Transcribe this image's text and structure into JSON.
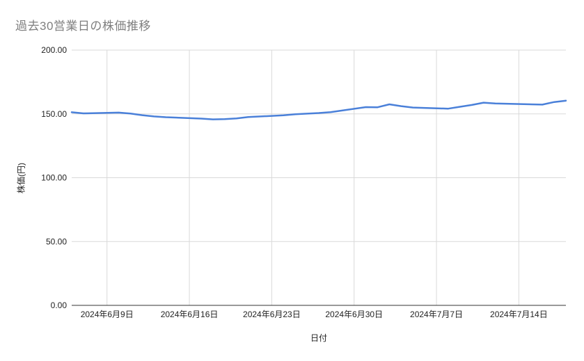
{
  "title": "過去30営業日の株価推移",
  "colors": {
    "line": "#4a80d9",
    "title_text": "#7f7f7f",
    "grid": "#d9d9d9",
    "axis_line": "#333333",
    "tick_text": "#222222",
    "axis_title_text": "#222222",
    "background": "#ffffff"
  },
  "chart_data": {
    "type": "line",
    "title": "過去30営業日の株価推移",
    "xlabel": "日付",
    "ylabel": "株価(円)",
    "grid": true,
    "legend": false,
    "ylim": [
      0,
      200
    ],
    "y_ticks": [
      0,
      50,
      100,
      150,
      200
    ],
    "y_tick_labels": [
      "0.00",
      "50.00",
      "100.00",
      "150.00",
      "200.00"
    ],
    "x_axis_range": [
      "2024-06-06",
      "2024-07-18"
    ],
    "x_ticks": [
      "2024-06-09",
      "2024-06-16",
      "2024-06-23",
      "2024-06-30",
      "2024-07-07",
      "2024-07-14"
    ],
    "x_tick_labels": [
      "2024年6月9日",
      "2024年6月16日",
      "2024年6月23日",
      "2024年6月30日",
      "2024年7月7日",
      "2024年7月14日"
    ],
    "x": [
      "2024-06-06",
      "2024-06-07",
      "2024-06-10",
      "2024-06-11",
      "2024-06-12",
      "2024-06-13",
      "2024-06-14",
      "2024-06-17",
      "2024-06-18",
      "2024-06-19",
      "2024-06-20",
      "2024-06-21",
      "2024-06-24",
      "2024-06-25",
      "2024-06-26",
      "2024-06-27",
      "2024-06-28",
      "2024-07-01",
      "2024-07-02",
      "2024-07-03",
      "2024-07-04",
      "2024-07-05",
      "2024-07-08",
      "2024-07-09",
      "2024-07-10",
      "2024-07-11",
      "2024-07-12",
      "2024-07-16",
      "2024-07-17",
      "2024-07-18"
    ],
    "values": [
      151.3,
      150.4,
      151.0,
      150.3,
      149.0,
      148.0,
      147.4,
      146.3,
      145.7,
      145.9,
      146.5,
      147.5,
      148.9,
      149.7,
      150.2,
      150.7,
      151.4,
      155.3,
      155.2,
      157.5,
      156.1,
      155.0,
      154.1,
      155.6,
      157.0,
      158.8,
      158.2,
      157.3,
      159.3,
      160.4
    ]
  }
}
